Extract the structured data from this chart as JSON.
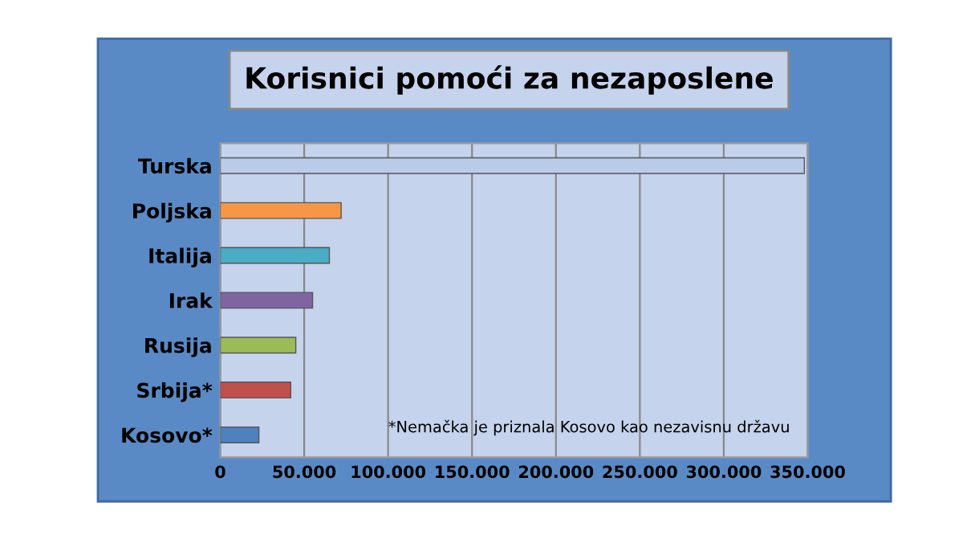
{
  "chart_data": {
    "type": "bar",
    "orientation": "horizontal",
    "title": "Korisnici pomoći za nezaposlene",
    "categories": [
      "Turska",
      "Poljska",
      "Italija",
      "Irak",
      "Rusija",
      "Srbija*",
      "Kosovo*"
    ],
    "values": [
      348000,
      72000,
      65000,
      55000,
      45000,
      42000,
      23000
    ],
    "colors": [
      "#b9cbe9",
      "#f79646",
      "#4bacc6",
      "#8064a2",
      "#9bbb59",
      "#c0504d",
      "#4f81bd"
    ],
    "xlim": [
      0,
      350000
    ],
    "xticks": [
      {
        "value": 0,
        "label": "0"
      },
      {
        "value": 50000,
        "label": "50.000"
      },
      {
        "value": 100000,
        "label": "100.000"
      },
      {
        "value": 150000,
        "label": "150.000"
      },
      {
        "value": 200000,
        "label": "200.000"
      },
      {
        "value": 250000,
        "label": "250.000"
      },
      {
        "value": 300000,
        "label": "300.000"
      },
      {
        "value": 350000,
        "label": "350.000"
      }
    ],
    "grid": "x",
    "annotations": [
      "*Nemačka je priznala Kosovo kao nezavisnu državu"
    ]
  }
}
